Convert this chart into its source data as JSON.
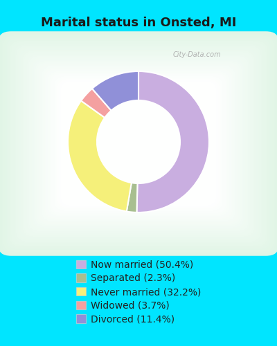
{
  "title": "Marital status in Onsted, MI",
  "title_fontsize": 13,
  "title_fontweight": "bold",
  "title_color": "#1a1a1a",
  "bg_outer": "#00e5ff",
  "bg_chart_edge": "#b8d8c0",
  "bg_chart_center": "#e8f4e8",
  "watermark": "City-Data.com",
  "slices": [
    {
      "label": "Now married (50.4%)",
      "value": 50.4,
      "color": "#c9aee0"
    },
    {
      "label": "Separated (2.3%)",
      "value": 2.3,
      "color": "#a8bf90"
    },
    {
      "label": "Never married (32.2%)",
      "value": 32.2,
      "color": "#f5f07a"
    },
    {
      "label": "Widowed (3.7%)",
      "value": 3.7,
      "color": "#f4a0a0"
    },
    {
      "label": "Divorced (11.4%)",
      "value": 11.4,
      "color": "#9090d8"
    }
  ],
  "legend_fontsize": 10,
  "legend_text_color": "#222222",
  "donut_width": 0.35,
  "start_angle": 90
}
